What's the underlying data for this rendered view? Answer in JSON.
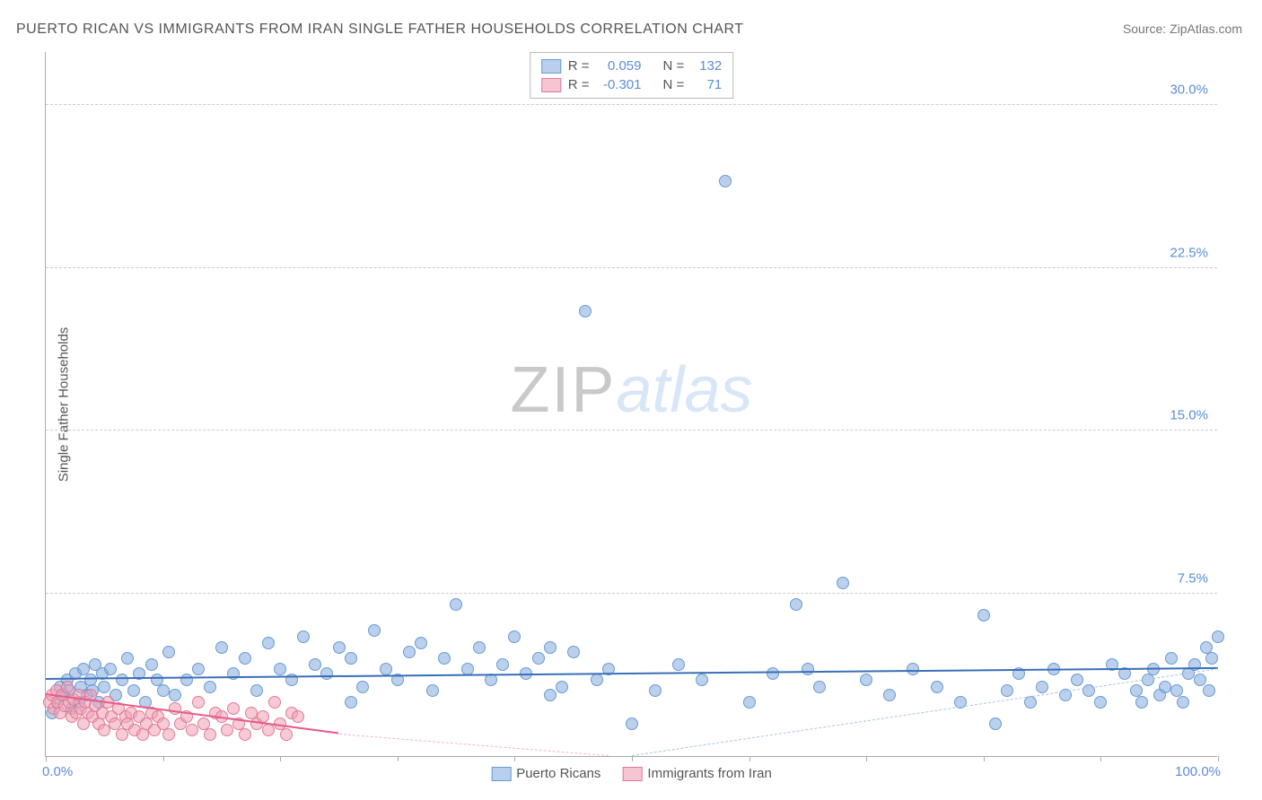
{
  "title": "PUERTO RICAN VS IMMIGRANTS FROM IRAN SINGLE FATHER HOUSEHOLDS CORRELATION CHART",
  "source": "Source: ZipAtlas.com",
  "yaxis_title": "Single Father Households",
  "watermark": {
    "zip": "ZIP",
    "atlas": "atlas"
  },
  "chart": {
    "type": "scatter",
    "xlim": [
      0,
      100
    ],
    "ylim": [
      0,
      32.5
    ],
    "yticks": [
      7.5,
      15.0,
      22.5,
      30.0
    ],
    "ytick_labels": [
      "7.5%",
      "15.0%",
      "22.5%",
      "30.0%"
    ],
    "xticks": [
      0,
      10,
      20,
      30,
      40,
      50,
      60,
      70,
      80,
      90,
      100
    ],
    "x_start_label": "0.0%",
    "x_end_label": "100.0%",
    "background_color": "#ffffff",
    "grid_color": "#cccccc",
    "axis_color": "#aaaaaa",
    "point_radius": 7,
    "series": [
      {
        "name": "Puerto Ricans",
        "fill": "rgba(130,170,222,0.55)",
        "stroke": "#6b9bd1",
        "swatch_fill": "#b8d0ee",
        "swatch_border": "#6b9bd1",
        "line_color": "#3a6fb7",
        "dash_color": "#a8c4e8",
        "R": "0.059",
        "N": "132",
        "regression": {
          "x0": 0,
          "y0": 3.5,
          "x1": 100,
          "y1": 4.0
        },
        "dash": {
          "x0": 50,
          "y0": 0,
          "x1": 100,
          "y1": 4.0
        },
        "points": [
          [
            0.5,
            2.0
          ],
          [
            1,
            2.5
          ],
          [
            1.2,
            3.2
          ],
          [
            1.5,
            2.8
          ],
          [
            1.8,
            3.5
          ],
          [
            2,
            3.0
          ],
          [
            2.2,
            2.2
          ],
          [
            2.5,
            3.8
          ],
          [
            2.8,
            2.5
          ],
          [
            3,
            3.2
          ],
          [
            3.2,
            4.0
          ],
          [
            3.5,
            2.8
          ],
          [
            3.8,
            3.5
          ],
          [
            4,
            3.0
          ],
          [
            4.2,
            4.2
          ],
          [
            4.5,
            2.5
          ],
          [
            4.8,
            3.8
          ],
          [
            5,
            3.2
          ],
          [
            5.5,
            4.0
          ],
          [
            6,
            2.8
          ],
          [
            6.5,
            3.5
          ],
          [
            7,
            4.5
          ],
          [
            7.5,
            3.0
          ],
          [
            8,
            3.8
          ],
          [
            8.5,
            2.5
          ],
          [
            9,
            4.2
          ],
          [
            9.5,
            3.5
          ],
          [
            10,
            3.0
          ],
          [
            10.5,
            4.8
          ],
          [
            11,
            2.8
          ],
          [
            12,
            3.5
          ],
          [
            13,
            4.0
          ],
          [
            14,
            3.2
          ],
          [
            15,
            5.0
          ],
          [
            16,
            3.8
          ],
          [
            17,
            4.5
          ],
          [
            18,
            3.0
          ],
          [
            19,
            5.2
          ],
          [
            20,
            4.0
          ],
          [
            21,
            3.5
          ],
          [
            22,
            5.5
          ],
          [
            23,
            4.2
          ],
          [
            24,
            3.8
          ],
          [
            25,
            5.0
          ],
          [
            26,
            4.5
          ],
          [
            26,
            2.5
          ],
          [
            27,
            3.2
          ],
          [
            28,
            5.8
          ],
          [
            29,
            4.0
          ],
          [
            30,
            3.5
          ],
          [
            31,
            4.8
          ],
          [
            32,
            5.2
          ],
          [
            33,
            3.0
          ],
          [
            34,
            4.5
          ],
          [
            35,
            7.0
          ],
          [
            36,
            4.0
          ],
          [
            37,
            5.0
          ],
          [
            38,
            3.5
          ],
          [
            39,
            4.2
          ],
          [
            40,
            5.5
          ],
          [
            41,
            3.8
          ],
          [
            42,
            4.5
          ],
          [
            43,
            5.0
          ],
          [
            43,
            2.8
          ],
          [
            44,
            3.2
          ],
          [
            45,
            4.8
          ],
          [
            46,
            20.5
          ],
          [
            47,
            3.5
          ],
          [
            48,
            4.0
          ],
          [
            50,
            1.5
          ],
          [
            52,
            3.0
          ],
          [
            54,
            4.2
          ],
          [
            56,
            3.5
          ],
          [
            58,
            26.5
          ],
          [
            60,
            2.5
          ],
          [
            62,
            3.8
          ],
          [
            64,
            7.0
          ],
          [
            65,
            4.0
          ],
          [
            66,
            3.2
          ],
          [
            68,
            8.0
          ],
          [
            70,
            3.5
          ],
          [
            72,
            2.8
          ],
          [
            74,
            4.0
          ],
          [
            76,
            3.2
          ],
          [
            78,
            2.5
          ],
          [
            80,
            6.5
          ],
          [
            81,
            1.5
          ],
          [
            82,
            3.0
          ],
          [
            83,
            3.8
          ],
          [
            84,
            2.5
          ],
          [
            85,
            3.2
          ],
          [
            86,
            4.0
          ],
          [
            87,
            2.8
          ],
          [
            88,
            3.5
          ],
          [
            89,
            3.0
          ],
          [
            90,
            2.5
          ],
          [
            91,
            4.2
          ],
          [
            92,
            3.8
          ],
          [
            93,
            3.0
          ],
          [
            93.5,
            2.5
          ],
          [
            94,
            3.5
          ],
          [
            94.5,
            4.0
          ],
          [
            95,
            2.8
          ],
          [
            95.5,
            3.2
          ],
          [
            96,
            4.5
          ],
          [
            96.5,
            3.0
          ],
          [
            97,
            2.5
          ],
          [
            97.5,
            3.8
          ],
          [
            98,
            4.2
          ],
          [
            98.5,
            3.5
          ],
          [
            99,
            5.0
          ],
          [
            99.2,
            3.0
          ],
          [
            99.5,
            4.5
          ],
          [
            100,
            5.5
          ]
        ]
      },
      {
        "name": "Immigrants from Iran",
        "fill": "rgba(240,160,180,0.55)",
        "stroke": "#e07a95",
        "swatch_fill": "#f5c5d2",
        "swatch_border": "#e07a95",
        "line_color": "#e85a8a",
        "dash_color": "#f0b8c8",
        "R": "-0.301",
        "N": "71",
        "regression": {
          "x0": 0,
          "y0": 2.8,
          "x1": 25,
          "y1": 1.0
        },
        "dash": {
          "x0": 25,
          "y0": 1.0,
          "x1": 48,
          "y1": 0
        },
        "points": [
          [
            0.3,
            2.5
          ],
          [
            0.5,
            2.8
          ],
          [
            0.7,
            2.2
          ],
          [
            0.9,
            3.0
          ],
          [
            1.0,
            2.5
          ],
          [
            1.2,
            2.0
          ],
          [
            1.4,
            2.8
          ],
          [
            1.6,
            2.3
          ],
          [
            1.8,
            3.2
          ],
          [
            2.0,
            2.5
          ],
          [
            2.2,
            1.8
          ],
          [
            2.4,
            2.6
          ],
          [
            2.6,
            2.0
          ],
          [
            2.8,
            2.8
          ],
          [
            3.0,
            2.2
          ],
          [
            3.2,
            1.5
          ],
          [
            3.4,
            2.5
          ],
          [
            3.6,
            2.0
          ],
          [
            3.8,
            2.8
          ],
          [
            4.0,
            1.8
          ],
          [
            4.2,
            2.3
          ],
          [
            4.5,
            1.5
          ],
          [
            4.8,
            2.0
          ],
          [
            5.0,
            1.2
          ],
          [
            5.3,
            2.5
          ],
          [
            5.6,
            1.8
          ],
          [
            5.9,
            1.5
          ],
          [
            6.2,
            2.2
          ],
          [
            6.5,
            1.0
          ],
          [
            6.8,
            1.8
          ],
          [
            7.0,
            1.5
          ],
          [
            7.3,
            2.0
          ],
          [
            7.6,
            1.2
          ],
          [
            8.0,
            1.8
          ],
          [
            8.3,
            1.0
          ],
          [
            8.6,
            1.5
          ],
          [
            9.0,
            2.0
          ],
          [
            9.3,
            1.2
          ],
          [
            9.6,
            1.8
          ],
          [
            10.0,
            1.5
          ],
          [
            10.5,
            1.0
          ],
          [
            11.0,
            2.2
          ],
          [
            11.5,
            1.5
          ],
          [
            12.0,
            1.8
          ],
          [
            12.5,
            1.2
          ],
          [
            13.0,
            2.5
          ],
          [
            13.5,
            1.5
          ],
          [
            14.0,
            1.0
          ],
          [
            14.5,
            2.0
          ],
          [
            15.0,
            1.8
          ],
          [
            15.5,
            1.2
          ],
          [
            16.0,
            2.2
          ],
          [
            16.5,
            1.5
          ],
          [
            17.0,
            1.0
          ],
          [
            17.5,
            2.0
          ],
          [
            18.0,
            1.5
          ],
          [
            18.5,
            1.8
          ],
          [
            19.0,
            1.2
          ],
          [
            19.5,
            2.5
          ],
          [
            20.0,
            1.5
          ],
          [
            20.5,
            1.0
          ],
          [
            21.0,
            2.0
          ],
          [
            21.5,
            1.8
          ]
        ]
      }
    ]
  },
  "legend_labels": [
    "Puerto Ricans",
    "Immigrants from Iran"
  ],
  "stats_labels": {
    "R": "R =",
    "N": "N ="
  }
}
